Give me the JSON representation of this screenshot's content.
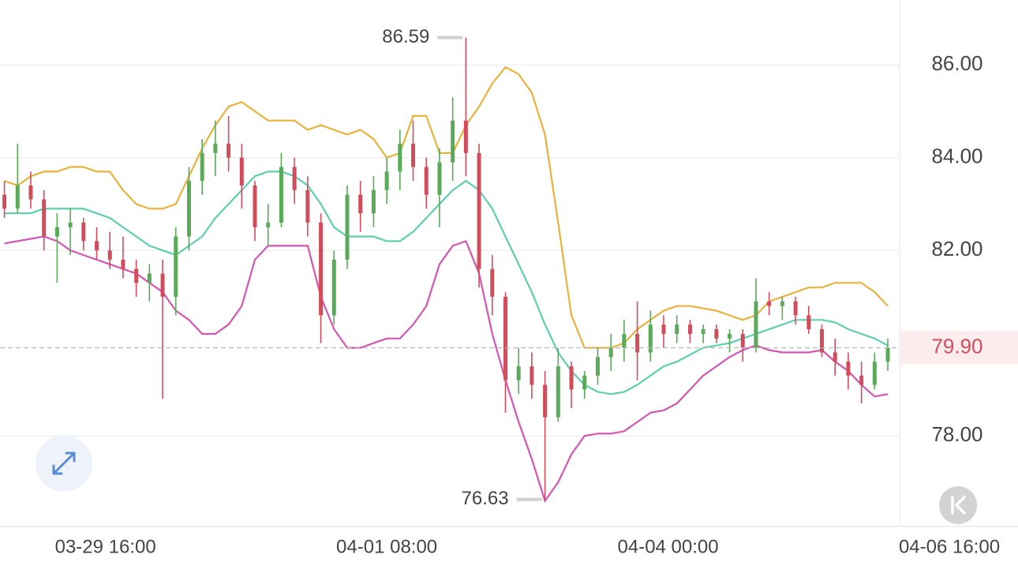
{
  "chart_data": {
    "type": "candlestick",
    "x": [
      "03-28 17:00",
      "03-28 20:00",
      "03-28 23:00",
      "03-29 02:00",
      "03-29 05:00",
      "03-29 08:00",
      "03-29 11:00",
      "03-29 14:00",
      "03-29 17:00",
      "03-29 20:00",
      "03-29 23:00",
      "03-30 02:00",
      "03-30 05:00",
      "03-30 08:00",
      "03-30 11:00",
      "03-30 14:00",
      "03-30 17:00",
      "03-30 20:00",
      "03-30 23:00",
      "03-31 02:00",
      "03-31 05:00",
      "03-31 08:00",
      "03-31 11:00",
      "03-31 14:00",
      "03-31 17:00",
      "03-31 20:00",
      "03-31 23:00",
      "04-01 02:00",
      "04-01 05:00",
      "04-01 08:00",
      "04-01 11:00",
      "04-01 14:00",
      "04-01 17:00",
      "04-01 20:00",
      "04-01 23:00",
      "04-02 02:00",
      "04-02 05:00",
      "04-02 08:00",
      "04-02 11:00",
      "04-02 14:00",
      "04-02 17:00",
      "04-02 20:00",
      "04-02 23:00",
      "04-03 02:00",
      "04-03 05:00",
      "04-03 08:00",
      "04-03 11:00",
      "04-03 14:00",
      "04-03 17:00",
      "04-03 20:00",
      "04-03 23:00",
      "04-04 02:00",
      "04-04 05:00",
      "04-04 08:00",
      "04-04 11:00",
      "04-04 14:00",
      "04-04 17:00",
      "04-04 20:00",
      "04-04 23:00",
      "04-05 02:00",
      "04-05 05:00",
      "04-05 08:00",
      "04-05 11:00",
      "04-05 14:00",
      "04-05 17:00",
      "04-05 20:00",
      "04-05 23:00",
      "04-06 02:00"
    ],
    "open": [
      83.2,
      82.9,
      83.4,
      83.1,
      82.3,
      82.5,
      82.6,
      82.2,
      82.0,
      81.8,
      81.6,
      81.3,
      81.5,
      81.0,
      82.3,
      83.5,
      84.1,
      84.3,
      84.0,
      83.4,
      82.5,
      82.6,
      83.8,
      83.3,
      82.6,
      80.6,
      81.8,
      83.2,
      82.8,
      83.3,
      83.7,
      84.3,
      83.8,
      83.2,
      83.9,
      84.8,
      84.1,
      81.6,
      81.0,
      79.2,
      79.5,
      79.1,
      78.4,
      79.5,
      79.0,
      79.3,
      79.7,
      79.9,
      80.2,
      79.8,
      80.4,
      80.2,
      80.4,
      80.2,
      80.3,
      80.1,
      80.2,
      79.9,
      80.9,
      80.8,
      80.9,
      80.6,
      80.3,
      79.8,
      79.6,
      79.3,
      79.1,
      79.6
    ],
    "high": [
      83.5,
      84.3,
      83.7,
      83.3,
      82.8,
      82.9,
      82.7,
      82.5,
      82.4,
      82.3,
      81.8,
      81.7,
      81.8,
      82.5,
      83.8,
      84.4,
      84.8,
      84.9,
      84.3,
      83.5,
      83.0,
      84.1,
      84.0,
      83.6,
      82.8,
      82.0,
      83.4,
      83.5,
      83.6,
      84.0,
      84.6,
      84.8,
      84.0,
      84.2,
      85.3,
      86.59,
      84.3,
      81.9,
      81.1,
      79.9,
      79.8,
      79.4,
      79.9,
      79.6,
      79.4,
      79.9,
      80.2,
      80.5,
      80.9,
      80.7,
      80.6,
      80.6,
      80.5,
      80.4,
      80.4,
      80.3,
      80.3,
      81.4,
      81.1,
      81.0,
      81.0,
      80.8,
      80.4,
      80.1,
      79.8,
      79.6,
      79.8,
      80.1
    ],
    "low": [
      82.7,
      82.8,
      82.9,
      82.0,
      81.3,
      81.9,
      82.0,
      81.8,
      81.6,
      81.4,
      81.0,
      80.9,
      78.8,
      80.6,
      82.0,
      83.2,
      83.6,
      83.7,
      82.9,
      82.2,
      82.1,
      82.5,
      83.0,
      82.3,
      80.0,
      80.4,
      81.6,
      82.4,
      82.5,
      83.0,
      83.3,
      83.5,
      82.9,
      82.5,
      83.5,
      83.6,
      81.2,
      80.6,
      78.5,
      78.9,
      78.8,
      76.63,
      78.3,
      78.6,
      78.8,
      79.1,
      79.4,
      79.6,
      79.2,
      79.6,
      79.9,
      80.0,
      80.0,
      80.0,
      80.0,
      79.8,
      79.6,
      79.8,
      80.6,
      80.5,
      80.4,
      80.2,
      79.7,
      79.3,
      79.0,
      78.7,
      79.0,
      79.4
    ],
    "close": [
      82.9,
      83.4,
      83.1,
      82.3,
      82.5,
      82.6,
      82.2,
      82.0,
      81.8,
      81.6,
      81.3,
      81.5,
      81.0,
      82.3,
      83.5,
      84.1,
      84.3,
      84.0,
      83.4,
      82.5,
      82.6,
      83.8,
      83.3,
      82.6,
      80.6,
      81.8,
      83.2,
      82.8,
      83.3,
      83.7,
      84.3,
      83.8,
      83.2,
      83.9,
      84.8,
      84.1,
      81.6,
      81.0,
      79.2,
      79.5,
      79.1,
      78.4,
      79.5,
      79.0,
      79.3,
      79.7,
      79.9,
      80.2,
      79.8,
      80.4,
      80.2,
      80.4,
      80.2,
      80.3,
      80.1,
      80.2,
      79.9,
      80.9,
      80.8,
      80.9,
      80.6,
      80.3,
      79.8,
      79.6,
      79.3,
      79.1,
      79.6,
      79.9
    ],
    "up_color": "#5aaa5a",
    "down_color": "#d24d5c",
    "overlays": [
      {
        "color": "#e9b23c",
        "values": [
          83.5,
          83.4,
          83.6,
          83.7,
          83.7,
          83.8,
          83.8,
          83.7,
          83.7,
          83.3,
          83.0,
          82.9,
          82.9,
          83.0,
          83.6,
          84.2,
          84.7,
          85.1,
          85.2,
          85.0,
          84.8,
          84.8,
          84.8,
          84.6,
          84.7,
          84.6,
          84.5,
          84.6,
          84.4,
          84.0,
          84.1,
          84.9,
          84.9,
          84.1,
          84.1,
          84.7,
          85.1,
          85.6,
          85.95,
          85.8,
          85.4,
          84.5,
          82.6,
          80.6,
          79.9,
          79.9,
          79.9,
          80.0,
          80.3,
          80.5,
          80.7,
          80.8,
          80.8,
          80.75,
          80.7,
          80.6,
          80.5,
          80.6,
          80.9,
          81.0,
          81.1,
          81.2,
          81.2,
          81.3,
          81.3,
          81.3,
          81.1,
          80.8
        ]
      },
      {
        "color": "#5ccfae",
        "values": [
          82.8,
          82.8,
          82.8,
          82.9,
          82.9,
          82.9,
          82.9,
          82.8,
          82.7,
          82.5,
          82.3,
          82.1,
          82.0,
          81.9,
          82.1,
          82.3,
          82.7,
          83.0,
          83.3,
          83.6,
          83.7,
          83.7,
          83.6,
          83.4,
          83.0,
          82.5,
          82.3,
          82.3,
          82.3,
          82.2,
          82.2,
          82.4,
          82.7,
          83.0,
          83.3,
          83.5,
          83.3,
          82.9,
          82.3,
          81.7,
          81.1,
          80.4,
          79.8,
          79.4,
          79.1,
          78.95,
          78.9,
          78.95,
          79.1,
          79.3,
          79.5,
          79.6,
          79.75,
          79.9,
          79.95,
          80.0,
          80.1,
          80.2,
          80.3,
          80.4,
          80.5,
          80.5,
          80.5,
          80.45,
          80.3,
          80.2,
          80.1,
          79.95
        ]
      },
      {
        "color": "#d455b2",
        "values": [
          82.15,
          82.2,
          82.25,
          82.3,
          82.2,
          82.0,
          81.9,
          81.8,
          81.7,
          81.6,
          81.5,
          81.3,
          81.1,
          80.7,
          80.5,
          80.2,
          80.2,
          80.4,
          80.8,
          81.8,
          82.1,
          82.1,
          82.1,
          82.1,
          81.0,
          80.3,
          79.9,
          79.9,
          80.0,
          80.1,
          80.1,
          80.4,
          80.8,
          81.7,
          82.1,
          82.2,
          81.5,
          80.2,
          79.2,
          78.3,
          77.5,
          76.6,
          77.0,
          77.6,
          78.0,
          78.05,
          78.05,
          78.1,
          78.3,
          78.5,
          78.55,
          78.7,
          79.0,
          79.3,
          79.5,
          79.7,
          79.85,
          79.95,
          79.85,
          79.8,
          79.8,
          79.8,
          79.85,
          79.6,
          79.4,
          79.1,
          78.85,
          78.9
        ]
      }
    ],
    "ylim": [
      76.08,
      87.4
    ],
    "yticks": [
      {
        "value": 78,
        "label": "78.00"
      },
      {
        "value": 82,
        "label": "82.00"
      },
      {
        "value": 84,
        "label": "84.00"
      },
      {
        "value": 86,
        "label": "86.00"
      }
    ],
    "xlim": [
      "03-28 16:00",
      "04-06 16:00"
    ],
    "xticks": [
      "03-29 16:00",
      "04-01 08:00",
      "04-04 00:00",
      "04-06 16:00"
    ],
    "last_price": {
      "value": 79.9,
      "label": "79.90"
    },
    "grid": true
  }
}
